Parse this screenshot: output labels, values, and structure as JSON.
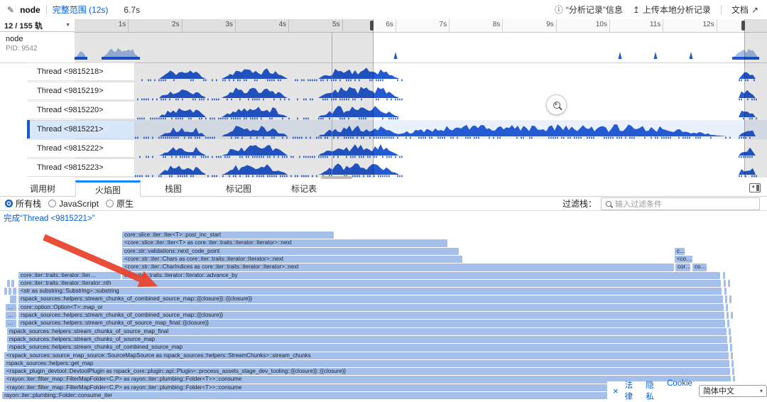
{
  "header": {
    "profile_name": "node",
    "range_label": "完整范围 (12s)",
    "selection_duration": "6.7s",
    "info_label": "“分析记录”信息",
    "upload_label": "上传本地分析记录",
    "docs_label": "文档"
  },
  "timeline": {
    "track_count": "12 / 155 轨",
    "ticks": [
      "1s",
      "2s",
      "3s",
      "4s",
      "5s",
      "6s",
      "7s",
      "8s",
      "9s",
      "10s",
      "11s",
      "12s"
    ],
    "process": {
      "name": "node",
      "pid": "PID: 9542"
    },
    "threads": [
      "Thread <9815218>",
      "Thread <9815219>",
      "Thread <9815220>",
      "Thread <9815221>",
      "Thread <9815222>",
      "Thread <9815223>"
    ],
    "selected_thread": 3
  },
  "tabs": {
    "items": [
      "调用树",
      "火焰图",
      "栈图",
      "标记图",
      "标记表"
    ],
    "active": 1
  },
  "filters": {
    "options": [
      {
        "label": "所有栈",
        "selected": true
      },
      {
        "label": "JavaScript",
        "selected": false
      },
      {
        "label": "原生",
        "selected": false
      }
    ],
    "filter_label": "过滤栈：",
    "placeholder": "输入过滤条件"
  },
  "breadcrumb": "完成“Thread <9815221>”",
  "flame": {
    "rows": [
      [
        [
          172,
          298,
          "core::slice::iter::Iter<T>::post_inc_start"
        ]
      ],
      [
        [
          172,
          458,
          "<core::slice::iter::Iter<T> as core::iter::traits::iterator::Iterator>::next"
        ]
      ],
      [
        [
          172,
          474,
          "core::str::validations::next_code_point"
        ],
        [
          950,
          14,
          "c…"
        ]
      ],
      [
        [
          172,
          479,
          "<core::str::iter::Chars as core::iter::traits::iterator::Iterator>::next"
        ],
        [
          950,
          25,
          "<co…"
        ]
      ],
      [
        [
          172,
          777,
          "<core::str::iter::CharIndices as core::iter::traits::iterator::Iterator>::next"
        ],
        [
          951,
          21,
          "cor…"
        ],
        [
          975,
          20,
          "co…"
        ]
      ],
      [
        [
          26,
          144,
          "core::iter::traits::iterator::Iter…"
        ],
        [
          172,
          842,
          "core::iter::traits::iterator::Iterator::advance_by"
        ],
        [
          1018,
          3,
          ""
        ]
      ],
      [
        [
          10,
          4,
          ""
        ],
        [
          16,
          4,
          ""
        ],
        [
          26,
          989,
          "core::iter::traits::iterator::Iterator::nth"
        ],
        [
          1019,
          3,
          ""
        ],
        [
          1025,
          3,
          ""
        ]
      ],
      [
        [
          6,
          4,
          ""
        ],
        [
          12,
          4,
          ""
        ],
        [
          18,
          5,
          ""
        ],
        [
          26,
          990,
          "<str as substring::Substring>::substring"
        ],
        [
          1020,
          3,
          ""
        ]
      ],
      [
        [
          14,
          9,
          ""
        ],
        [
          26,
          992,
          "rspack_sources::helpers::stream_chunks_of_combined_source_map::{{closure}}::{{closure}}"
        ],
        [
          1021,
          3,
          ""
        ],
        [
          1027,
          3,
          ""
        ]
      ],
      [
        [
          8,
          15,
          "…"
        ],
        [
          26,
          993,
          "core::option::Option<T>::map_or"
        ],
        [
          1022,
          3,
          ""
        ]
      ],
      [
        [
          8,
          15,
          "…"
        ],
        [
          26,
          994,
          "rspack_sources::helpers::stream_chunks_of_combined_source_map::{{closure}}"
        ],
        [
          1023,
          3,
          ""
        ],
        [
          1029,
          3,
          ""
        ]
      ],
      [
        [
          8,
          15,
          "…"
        ],
        [
          26,
          995,
          "rspack_sources::helpers::stream_chunks_of_source_map_final::{{closure}}"
        ],
        [
          1024,
          3,
          ""
        ]
      ],
      [
        [
          10,
          1013,
          "rspack_sources::helpers::stream_chunks_of_source_map_final"
        ],
        [
          1026,
          3,
          ""
        ]
      ],
      [
        [
          10,
          1014,
          "rspack_sources::helpers::stream_chunks_of_source_map"
        ],
        [
          1027,
          3,
          ""
        ]
      ],
      [
        [
          10,
          1015,
          "rspack_sources::helpers::stream_chunks_of_combined_source_map"
        ],
        [
          1028,
          3,
          ""
        ]
      ],
      [
        [
          6,
          1020,
          "<rspack_sources::source_map_source::SourceMapSource as rspack_sources::helpers::StreamChunks>::stream_chunks"
        ],
        [
          1029,
          3,
          ""
        ]
      ],
      [
        [
          6,
          1021,
          "rspack_sources::helpers::get_map"
        ],
        [
          1030,
          3,
          ""
        ]
      ],
      [
        [
          6,
          1022,
          "<rspack_plugin_devtool::DevtoolPlugin as rspack_core::plugin::api::Plugin>::process_assets_stage_dev_tooling::{{closure}}::{{closure}}"
        ],
        [
          1031,
          3,
          ""
        ]
      ],
      [
        [
          6,
          1023,
          "<rayon::iter::filter_map::FilterMapFolder<C,P> as rayon::iter::plumbing::Folder<T>>::consume"
        ],
        [
          1032,
          3,
          ""
        ]
      ],
      [
        [
          6,
          1024,
          "<rayon::iter::filter_map::FilterMapFolder<C,P> as rayon::iter::plumbing::Folder<T>>::consume"
        ]
      ],
      [
        [
          3,
          1061,
          "rayon::iter::plumbing::Folder::consume_iter"
        ]
      ]
    ]
  },
  "footer": {
    "close": "×",
    "links": [
      "法律",
      "隐私",
      "Cookie"
    ],
    "language": "简体中文"
  },
  "colors": {
    "accent_blue": "#0060df",
    "track_blue": "#1d56d2",
    "track_blue_light": "#9db9e6",
    "flame_bar": "#a4bfe9",
    "selected_row_bg": "#d9e7fb",
    "dim_overlay": "rgba(0,0,0,0.10)",
    "arrow_red": "#e8442e"
  }
}
